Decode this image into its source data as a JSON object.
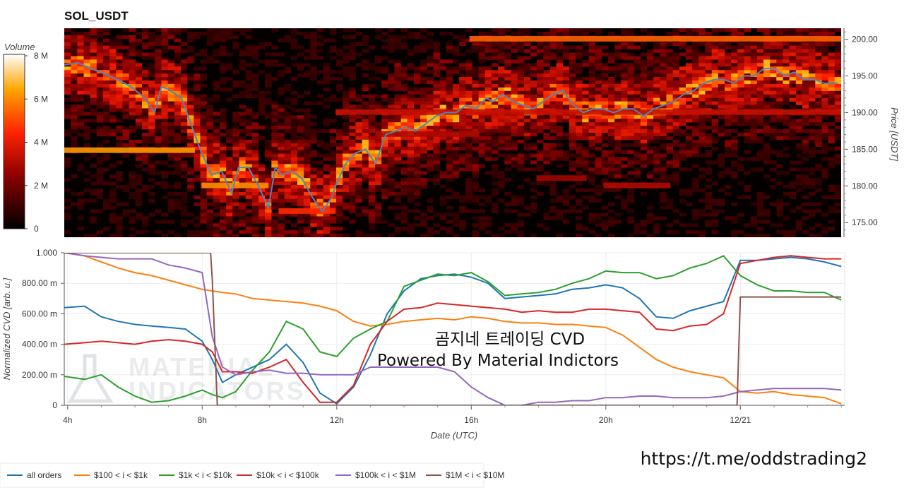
{
  "chart_data": [
    {
      "type": "heatmap",
      "title": "SOL_USDT",
      "colorbar": {
        "label": "Volume",
        "ticks": [
          "8 M",
          "6 M",
          "4 M",
          "2 M",
          "0"
        ],
        "range": [
          0,
          8000000
        ]
      },
      "ylabel": "Price [USDT]",
      "y_ticks": [
        "200.00",
        "195.00",
        "190.00",
        "185.00",
        "180.00",
        "175.00"
      ],
      "ylim": [
        173,
        201.5
      ],
      "x_range_hours": [
        3.9,
        27.1
      ],
      "price_series": {
        "name": "price",
        "x": [
          3.9,
          4.3,
          4.7,
          5.1,
          5.5,
          5.9,
          6.3,
          6.6,
          6.8,
          7.0,
          7.4,
          7.8,
          8.0,
          8.3,
          8.6,
          8.9,
          9.1,
          9.4,
          9.7,
          10.0,
          10.2,
          10.4,
          10.7,
          11.0,
          11.3,
          11.6,
          11.9,
          12.0,
          12.3,
          12.6,
          12.9,
          13.2,
          13.5,
          13.8,
          14.1,
          14.4,
          14.7,
          15.0,
          15.3,
          15.6,
          15.9,
          16.2,
          16.5,
          16.7,
          17.0,
          17.3,
          17.6,
          17.9,
          18.2,
          18.5,
          18.8,
          19.1,
          19.4,
          19.7,
          20.0,
          20.3,
          20.6,
          20.9,
          21.2,
          21.5,
          21.8,
          22.1,
          22.4,
          22.7,
          23.0,
          23.3,
          23.6,
          23.9,
          24.2,
          24.5,
          24.8,
          25.1,
          25.4,
          25.7,
          26.0,
          26.3,
          26.6,
          27.0
        ],
        "y": [
          196.5,
          196.8,
          196.0,
          195.3,
          194.5,
          193.5,
          192.0,
          190.0,
          193.5,
          193.2,
          192.0,
          187.0,
          184.5,
          181.5,
          182.0,
          179.0,
          182.5,
          182.5,
          180.0,
          177.0,
          182.5,
          181.5,
          182.0,
          181.0,
          178.5,
          176.5,
          178.5,
          180.0,
          183.0,
          184.5,
          185.0,
          183.0,
          187.0,
          187.5,
          188.0,
          187.5,
          188.5,
          189.5,
          190.0,
          190.0,
          191.0,
          190.5,
          192.0,
          191.5,
          192.5,
          191.5,
          191.0,
          190.5,
          191.5,
          192.5,
          193.0,
          191.0,
          190.0,
          190.5,
          190.5,
          190.0,
          190.5,
          190.5,
          189.5,
          190.5,
          191.0,
          191.5,
          192.5,
          193.0,
          194.0,
          194.5,
          194.5,
          194.0,
          195.0,
          195.0,
          196.0,
          196.0,
          195.0,
          195.5,
          194.5,
          194.5,
          194.0,
          194.0
        ]
      }
    },
    {
      "type": "line",
      "xlabel": "Date (UTC)",
      "ylabel": "Normalized CVD [arb. u.]",
      "x_ticks": [
        {
          "label": "4h",
          "hour": 4
        },
        {
          "label": "8h",
          "hour": 8
        },
        {
          "label": "12h",
          "hour": 12
        },
        {
          "label": "16h",
          "hour": 16
        },
        {
          "label": "20h",
          "hour": 20
        },
        {
          "label": "12/21",
          "hour": 24
        }
      ],
      "y_ticks": [
        "1.000",
        "800.00 m",
        "600.00 m",
        "400.00 m",
        "200.00 m",
        "0"
      ],
      "ylim": [
        0,
        1.0
      ],
      "x_range_hours": [
        3.9,
        27.1
      ],
      "x": [
        3.9,
        4.5,
        5.0,
        5.5,
        6.0,
        6.5,
        7.0,
        7.5,
        8.0,
        8.3,
        8.6,
        9.0,
        9.5,
        10.0,
        10.5,
        11.0,
        11.5,
        12.0,
        12.5,
        13.0,
        13.5,
        14.0,
        14.5,
        15.0,
        15.5,
        16.0,
        16.5,
        17.0,
        17.5,
        18.0,
        18.5,
        19.0,
        19.5,
        20.0,
        20.5,
        21.0,
        21.5,
        22.0,
        22.5,
        23.0,
        23.5,
        24.0,
        24.5,
        25.0,
        25.5,
        26.0,
        26.5,
        27.0
      ],
      "series": [
        {
          "name": "all orders",
          "color": "#1f77b4",
          "values": [
            0.64,
            0.65,
            0.58,
            0.55,
            0.53,
            0.52,
            0.51,
            0.5,
            0.42,
            0.3,
            0.15,
            0.2,
            0.25,
            0.3,
            0.4,
            0.28,
            0.08,
            0.01,
            0.12,
            0.33,
            0.6,
            0.75,
            0.83,
            0.85,
            0.86,
            0.84,
            0.8,
            0.7,
            0.71,
            0.72,
            0.73,
            0.76,
            0.77,
            0.79,
            0.77,
            0.7,
            0.58,
            0.57,
            0.62,
            0.65,
            0.68,
            0.95,
            0.95,
            0.96,
            0.97,
            0.96,
            0.94,
            0.91
          ]
        },
        {
          "name": "$100 < i < $1k",
          "color": "#ff7f0e",
          "values": [
            1.0,
            0.98,
            0.94,
            0.9,
            0.87,
            0.85,
            0.82,
            0.79,
            0.76,
            0.75,
            0.74,
            0.73,
            0.7,
            0.69,
            0.68,
            0.67,
            0.65,
            0.62,
            0.55,
            0.52,
            0.53,
            0.55,
            0.56,
            0.57,
            0.56,
            0.58,
            0.57,
            0.55,
            0.54,
            0.54,
            0.53,
            0.53,
            0.52,
            0.51,
            0.46,
            0.38,
            0.3,
            0.25,
            0.22,
            0.2,
            0.18,
            0.09,
            0.08,
            0.09,
            0.07,
            0.06,
            0.05,
            0.01
          ]
        },
        {
          "name": "$1k < i < $10k",
          "color": "#2ca02c",
          "values": [
            0.19,
            0.17,
            0.2,
            0.12,
            0.06,
            0.02,
            0.03,
            0.06,
            0.1,
            0.07,
            0.05,
            0.09,
            0.23,
            0.35,
            0.55,
            0.5,
            0.35,
            0.32,
            0.44,
            0.5,
            0.55,
            0.78,
            0.82,
            0.86,
            0.85,
            0.87,
            0.81,
            0.72,
            0.73,
            0.74,
            0.76,
            0.8,
            0.83,
            0.88,
            0.87,
            0.87,
            0.83,
            0.85,
            0.9,
            0.93,
            0.98,
            0.85,
            0.79,
            0.75,
            0.75,
            0.74,
            0.74,
            0.69
          ]
        },
        {
          "name": "$10k < i < $100k",
          "color": "#d62728",
          "values": [
            0.4,
            0.41,
            0.42,
            0.41,
            0.4,
            0.42,
            0.43,
            0.42,
            0.4,
            0.35,
            0.22,
            0.22,
            0.21,
            0.25,
            0.3,
            0.15,
            0.02,
            0.02,
            0.13,
            0.4,
            0.55,
            0.63,
            0.64,
            0.67,
            0.66,
            0.65,
            0.64,
            0.63,
            0.61,
            0.62,
            0.61,
            0.61,
            0.63,
            0.63,
            0.62,
            0.61,
            0.5,
            0.49,
            0.52,
            0.53,
            0.6,
            0.93,
            0.95,
            0.97,
            0.98,
            0.97,
            0.96,
            0.96
          ]
        },
        {
          "name": "$100k < i < $1M",
          "color": "#9467bd",
          "values": [
            1.0,
            0.98,
            0.97,
            0.96,
            0.96,
            0.96,
            0.92,
            0.9,
            0.87,
            0.45,
            0.25,
            0.2,
            0.22,
            0.23,
            0.21,
            0.21,
            0.2,
            0.2,
            0.2,
            0.25,
            0.25,
            0.25,
            0.25,
            0.25,
            0.22,
            0.12,
            0.05,
            0.0,
            0.0,
            0.02,
            0.02,
            0.03,
            0.03,
            0.05,
            0.05,
            0.06,
            0.06,
            0.05,
            0.05,
            0.05,
            0.06,
            0.09,
            0.1,
            0.11,
            0.11,
            0.11,
            0.11,
            0.1
          ]
        }
      ],
      "step_series": {
        "name": "$1M < i < $10M",
        "color": "#8c564b",
        "x": [
          3.9,
          8.25,
          8.3,
          8.45,
          23.9,
          24.0,
          27.0
        ],
        "values": [
          1.0,
          1.0,
          0.82,
          0.0,
          0.0,
          0.71,
          0.71
        ]
      },
      "legend": {
        "placement": "bottom-left",
        "items": [
          "all orders",
          "$100 < i < $1k",
          "$1k < i < $10k",
          "$10k < i < $100k",
          "$100k < i < $1M",
          "$1M < i < $10M"
        ]
      }
    }
  ],
  "overlay": {
    "line1": "곰지네 트레이딩 CVD",
    "line2": "Powered By Material Indictors"
  },
  "watermark": {
    "line1": "MATERIAL",
    "line2": "INDICATORS"
  },
  "link": "https://t.me/oddstrading2"
}
